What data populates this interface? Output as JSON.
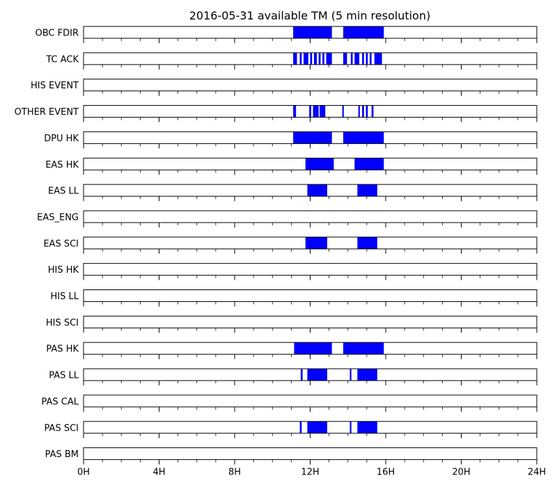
{
  "chart_data": {
    "type": "timeline",
    "title": "2016-05-31 available TM (5 min resolution)",
    "xlabel": "",
    "ylabel": "",
    "x_unit": "hours",
    "xlim": [
      0,
      24
    ],
    "x_ticks": [
      {
        "value": 0,
        "label": "0H"
      },
      {
        "value": 4,
        "label": "4H"
      },
      {
        "value": 8,
        "label": "8H"
      },
      {
        "value": 12,
        "label": "12H"
      },
      {
        "value": 16,
        "label": "16H"
      },
      {
        "value": 20,
        "label": "20H"
      },
      {
        "value": 24,
        "label": "24H"
      }
    ],
    "bar_color": "#0000ff",
    "series": [
      {
        "name": "OBC FDIR",
        "intervals": [
          [
            11.1,
            13.15
          ],
          [
            13.75,
            15.9
          ]
        ]
      },
      {
        "name": "TC ACK",
        "intervals": [
          [
            11.1,
            11.3
          ],
          [
            11.45,
            11.55
          ],
          [
            11.65,
            11.9
          ],
          [
            12.0,
            12.1
          ],
          [
            12.2,
            12.35
          ],
          [
            12.45,
            12.55
          ],
          [
            12.65,
            12.75
          ],
          [
            12.85,
            13.15
          ],
          [
            13.75,
            13.95
          ],
          [
            14.15,
            14.25
          ],
          [
            14.35,
            14.6
          ],
          [
            14.75,
            14.85
          ],
          [
            14.95,
            15.05
          ],
          [
            15.15,
            15.25
          ],
          [
            15.4,
            15.8
          ]
        ]
      },
      {
        "name": "HIS EVENT",
        "intervals": []
      },
      {
        "name": "OTHER EVENT",
        "intervals": [
          [
            11.1,
            11.25
          ],
          [
            11.95,
            12.05
          ],
          [
            12.15,
            12.45
          ],
          [
            12.5,
            12.8
          ],
          [
            13.7,
            13.78
          ],
          [
            14.55,
            14.63
          ],
          [
            14.75,
            14.85
          ],
          [
            14.95,
            15.05
          ],
          [
            15.25,
            15.35
          ]
        ]
      },
      {
        "name": "DPU HK",
        "intervals": [
          [
            11.1,
            13.15
          ],
          [
            13.75,
            15.9
          ]
        ]
      },
      {
        "name": "EAS HK",
        "intervals": [
          [
            11.75,
            13.25
          ],
          [
            14.35,
            15.9
          ]
        ]
      },
      {
        "name": "EAS LL",
        "intervals": [
          [
            11.85,
            12.9
          ],
          [
            14.5,
            15.55
          ]
        ]
      },
      {
        "name": "EAS_ENG",
        "intervals": []
      },
      {
        "name": "EAS SCI",
        "intervals": [
          [
            11.75,
            12.9
          ],
          [
            14.5,
            15.55
          ]
        ]
      },
      {
        "name": "HIS HK",
        "intervals": []
      },
      {
        "name": "HIS LL",
        "intervals": []
      },
      {
        "name": "HIS SCI",
        "intervals": []
      },
      {
        "name": "PAS HK",
        "intervals": [
          [
            11.15,
            13.15
          ],
          [
            13.75,
            15.9
          ]
        ]
      },
      {
        "name": "PAS LL",
        "intervals": [
          [
            11.5,
            11.6
          ],
          [
            11.85,
            12.9
          ],
          [
            14.1,
            14.18
          ],
          [
            14.5,
            15.55
          ]
        ]
      },
      {
        "name": "PAS CAL",
        "intervals": []
      },
      {
        "name": "PAS SCI",
        "intervals": [
          [
            11.45,
            11.55
          ],
          [
            11.85,
            12.9
          ],
          [
            14.1,
            14.18
          ],
          [
            14.5,
            15.55
          ]
        ]
      },
      {
        "name": "PAS BM",
        "intervals": []
      }
    ]
  }
}
